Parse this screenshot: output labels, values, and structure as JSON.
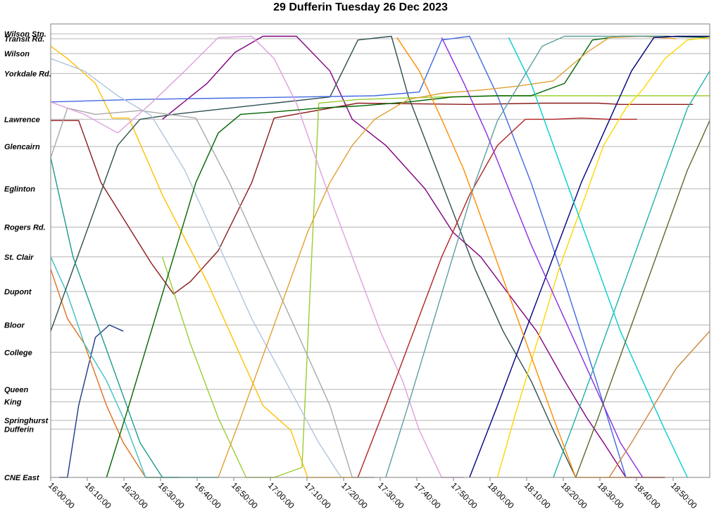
{
  "chart_data": {
    "type": "line",
    "title": "29 Dufferin Tuesday 26 Dec 2023",
    "xlabel": "",
    "ylabel": "",
    "x_ticks": [
      "16:00:00",
      "16:10:00",
      "16:20:00",
      "16:30:00",
      "16:40:00",
      "16:50:00",
      "17:00:00",
      "17:10:00",
      "17:20:00",
      "17:30:00",
      "17:40:00",
      "17:50:00",
      "18:00:00",
      "18:10:00",
      "18:20:00",
      "18:30:00",
      "18:40:00",
      "18:50:00"
    ],
    "x_range_minutes": [
      0,
      118
    ],
    "stops": [
      {
        "name": "Wilson Stn.",
        "pos": 0
      },
      {
        "name": "Transit Rd.",
        "pos": 0.4
      },
      {
        "name": "Wilson",
        "pos": 1.6
      },
      {
        "name": "Yorkdale Rd.",
        "pos": 3.2
      },
      {
        "name": "Lawrence",
        "pos": 6.9
      },
      {
        "name": "Glencairn",
        "pos": 9.1
      },
      {
        "name": "Eglinton",
        "pos": 12.5
      },
      {
        "name": "Rogers Rd.",
        "pos": 15.6
      },
      {
        "name": "St. Clair",
        "pos": 18.0
      },
      {
        "name": "Dupont",
        "pos": 20.8
      },
      {
        "name": "Bloor",
        "pos": 23.5
      },
      {
        "name": "College",
        "pos": 25.7
      },
      {
        "name": "Queen",
        "pos": 28.7
      },
      {
        "name": "King",
        "pos": 29.7
      },
      {
        "name": "Springhurst",
        "pos": 31.2
      },
      {
        "name": "Dufferin",
        "pos": 31.9
      },
      {
        "name": "CNE East",
        "pos": 35.8
      }
    ],
    "grid": true,
    "legend": "none",
    "series": [
      {
        "color": "#1b3a8a",
        "points": [
          [
            1.5,
            35.8
          ],
          [
            3,
            35.8
          ],
          [
            5,
            30
          ],
          [
            8,
            24.5
          ],
          [
            10.5,
            23.5
          ],
          [
            13,
            24
          ]
        ]
      },
      {
        "color": "#8b1a1a",
        "points": [
          [
            0,
            7
          ],
          [
            5,
            7
          ],
          [
            9,
            12
          ],
          [
            18,
            18.5
          ],
          [
            22,
            21
          ],
          [
            25,
            20
          ],
          [
            30,
            17.5
          ],
          [
            36,
            12
          ],
          [
            40,
            6.8
          ],
          [
            55,
            5.6
          ],
          [
            75,
            5.7
          ],
          [
            88,
            5.6
          ],
          [
            98,
            5.6
          ],
          [
            102,
            5.7
          ],
          [
            112,
            5.7
          ],
          [
            115,
            5.7
          ]
        ]
      },
      {
        "color": "#e07020",
        "points": [
          [
            0,
            19
          ],
          [
            3,
            23
          ],
          [
            6,
            25
          ],
          [
            10,
            30
          ],
          [
            13,
            33
          ],
          [
            17,
            35.8
          ],
          [
            20,
            35.8
          ]
        ]
      },
      {
        "color": "#40c0c0",
        "points": [
          [
            0,
            18
          ],
          [
            3,
            21
          ],
          [
            6,
            25
          ],
          [
            10,
            28
          ],
          [
            13,
            31
          ],
          [
            17,
            35.8
          ],
          [
            23,
            35.8
          ]
        ]
      },
      {
        "color": "#ffc000",
        "points": [
          [
            0,
            1
          ],
          [
            3,
            2
          ],
          [
            8,
            4
          ],
          [
            11,
            6.8
          ],
          [
            14,
            6.8
          ],
          [
            20,
            13
          ],
          [
            28,
            20
          ],
          [
            33,
            25
          ],
          [
            38,
            30
          ],
          [
            43,
            32
          ],
          [
            46,
            35.8
          ],
          [
            50,
            35.8
          ],
          [
            55,
            35.8
          ]
        ]
      },
      {
        "color": "#800080",
        "points": [
          [
            20,
            6.9
          ],
          [
            28,
            4
          ],
          [
            33,
            1.5
          ],
          [
            38,
            0.2
          ],
          [
            44,
            0.2
          ],
          [
            50,
            3
          ],
          [
            54,
            6.9
          ],
          [
            60,
            9
          ],
          [
            67,
            12.5
          ],
          [
            72,
            16
          ],
          [
            77,
            18
          ],
          [
            82,
            21
          ],
          [
            87,
            24
          ],
          [
            92,
            28
          ],
          [
            96,
            31
          ],
          [
            99,
            33
          ],
          [
            103,
            35.8
          ],
          [
            110,
            35.8
          ]
        ]
      },
      {
        "color": "#2f4f4f",
        "points": [
          [
            0,
            24
          ],
          [
            4,
            19
          ],
          [
            8,
            14
          ],
          [
            12,
            9
          ],
          [
            16,
            6.9
          ],
          [
            22,
            6.5
          ],
          [
            30,
            6.1
          ],
          [
            40,
            5.6
          ],
          [
            50,
            5.1
          ],
          [
            55,
            0.5
          ],
          [
            61,
            0.2
          ],
          [
            64,
            5
          ],
          [
            70,
            12
          ],
          [
            76,
            19
          ],
          [
            81,
            24
          ],
          [
            86,
            28
          ],
          [
            90,
            32
          ],
          [
            94,
            35.8
          ]
        ]
      },
      {
        "color": "#1c9a8c",
        "points": [
          [
            0,
            10
          ],
          [
            4,
            18
          ],
          [
            8,
            23
          ],
          [
            12,
            28
          ],
          [
            16,
            33
          ],
          [
            20,
            35.8
          ],
          [
            25,
            35.8
          ],
          [
            30,
            35.8
          ]
        ]
      },
      {
        "color": "#4169e1",
        "points": [
          [
            0,
            5.5
          ],
          [
            15,
            5.3
          ],
          [
            30,
            5.2
          ],
          [
            45,
            5.1
          ],
          [
            58,
            5
          ],
          [
            66,
            4.7
          ],
          [
            70,
            0.5
          ],
          [
            75,
            0.2
          ],
          [
            80,
            5
          ],
          [
            86,
            12
          ],
          [
            92,
            20
          ],
          [
            97,
            27
          ],
          [
            103,
            35.8
          ],
          [
            110,
            35.8
          ]
        ]
      },
      {
        "color": "#9acd32",
        "points": [
          [
            20,
            18
          ],
          [
            25,
            25
          ],
          [
            30,
            31
          ],
          [
            35,
            35.8
          ],
          [
            40,
            35.8
          ],
          [
            45,
            35
          ],
          [
            48,
            5.6
          ],
          [
            55,
            5.3
          ],
          [
            62,
            5.2
          ],
          [
            70,
            5.1
          ],
          [
            80,
            5
          ],
          [
            90,
            5
          ],
          [
            100,
            5
          ],
          [
            110,
            5
          ],
          [
            118,
            5
          ]
        ]
      },
      {
        "color": "#a9a9a9",
        "points": [
          [
            0,
            10
          ],
          [
            3,
            6
          ],
          [
            8,
            6.5
          ],
          [
            16,
            6.2
          ],
          [
            26,
            6.8
          ],
          [
            32,
            12
          ],
          [
            38,
            18
          ],
          [
            44,
            24
          ],
          [
            50,
            30
          ],
          [
            54,
            35.8
          ],
          [
            58,
            35.8
          ]
        ]
      },
      {
        "color": "#b0c4de",
        "points": [
          [
            0,
            2
          ],
          [
            6,
            3
          ],
          [
            12,
            5
          ],
          [
            18,
            6.6
          ],
          [
            24,
            11
          ],
          [
            30,
            17
          ],
          [
            36,
            23
          ],
          [
            42,
            28
          ],
          [
            48,
            33
          ],
          [
            52,
            35.8
          ]
        ]
      },
      {
        "color": "#dda0dd",
        "points": [
          [
            0,
            5.5
          ],
          [
            6,
            6.5
          ],
          [
            12,
            8
          ],
          [
            18,
            5.6
          ],
          [
            24,
            3
          ],
          [
            30,
            0.3
          ],
          [
            36,
            0.2
          ],
          [
            40,
            2
          ],
          [
            44,
            5.6
          ],
          [
            49,
            12
          ],
          [
            54,
            18
          ],
          [
            59,
            24
          ],
          [
            63,
            28
          ],
          [
            66,
            32
          ],
          [
            70,
            35.8
          ],
          [
            74,
            35.8
          ]
        ]
      },
      {
        "color": "#006400",
        "points": [
          [
            10,
            35.8
          ],
          [
            14,
            30
          ],
          [
            18,
            24
          ],
          [
            22,
            18
          ],
          [
            26,
            12
          ],
          [
            30,
            8
          ],
          [
            34,
            6.5
          ],
          [
            40,
            6.3
          ],
          [
            48,
            6
          ],
          [
            56,
            5.8
          ],
          [
            64,
            5.5
          ],
          [
            72,
            5.1
          ],
          [
            80,
            5
          ],
          [
            86,
            5
          ],
          [
            92,
            4
          ],
          [
            97,
            0.5
          ],
          [
            102,
            0.2
          ],
          [
            110,
            0.2
          ],
          [
            118,
            0.3
          ]
        ]
      },
      {
        "color": "#e0a030",
        "points": [
          [
            30,
            35.8
          ],
          [
            34,
            31
          ],
          [
            38,
            26
          ],
          [
            42,
            21
          ],
          [
            46,
            16
          ],
          [
            50,
            12
          ],
          [
            54,
            9
          ],
          [
            58,
            6.9
          ],
          [
            64,
            5.3
          ],
          [
            70,
            4.8
          ],
          [
            78,
            4.5
          ],
          [
            84,
            4.2
          ],
          [
            90,
            3.8
          ],
          [
            96,
            1.5
          ],
          [
            100,
            0.3
          ],
          [
            106,
            0.2
          ],
          [
            112,
            0.4
          ]
        ]
      },
      {
        "color": "#b22222",
        "points": [
          [
            55,
            35.8
          ],
          [
            60,
            30
          ],
          [
            65,
            24
          ],
          [
            70,
            18
          ],
          [
            75,
            13
          ],
          [
            80,
            9
          ],
          [
            85,
            6.9
          ],
          [
            90,
            6.9
          ],
          [
            95,
            6.8
          ],
          [
            100,
            6.9
          ],
          [
            105,
            6.9
          ]
        ]
      },
      {
        "color": "#5f9ea0",
        "points": [
          [
            60,
            35.8
          ],
          [
            64,
            30
          ],
          [
            68,
            24
          ],
          [
            72,
            18
          ],
          [
            76,
            12
          ],
          [
            80,
            7
          ],
          [
            84,
            4
          ],
          [
            88,
            1
          ],
          [
            92,
            0.2
          ],
          [
            100,
            0.2
          ],
          [
            110,
            0.2
          ]
        ]
      },
      {
        "color": "#000080",
        "points": [
          [
            75,
            35.8
          ],
          [
            80,
            30
          ],
          [
            85,
            24
          ],
          [
            90,
            18
          ],
          [
            95,
            12
          ],
          [
            100,
            7
          ],
          [
            104,
            3
          ],
          [
            108,
            0.3
          ],
          [
            112,
            0.2
          ],
          [
            118,
            0.2
          ]
        ]
      },
      {
        "color": "#ffd700",
        "points": [
          [
            80,
            35.8
          ],
          [
            83,
            31
          ],
          [
            87,
            25
          ],
          [
            91,
            19
          ],
          [
            95,
            14
          ],
          [
            99,
            9
          ],
          [
            103,
            6
          ],
          [
            106,
            4.5
          ],
          [
            110,
            2
          ],
          [
            114,
            0.5
          ],
          [
            118,
            0.3
          ]
        ]
      },
      {
        "color": "#20b2aa",
        "points": [
          [
            90,
            35.8
          ],
          [
            94,
            31
          ],
          [
            98,
            26
          ],
          [
            102,
            21
          ],
          [
            106,
            16
          ],
          [
            110,
            11
          ],
          [
            114,
            6
          ],
          [
            118,
            3
          ]
        ]
      },
      {
        "color": "#ff8c00",
        "points": [
          [
            62,
            0.3
          ],
          [
            66,
            3
          ],
          [
            70,
            6.9
          ],
          [
            74,
            11
          ],
          [
            78,
            16
          ],
          [
            82,
            21
          ],
          [
            86,
            26
          ],
          [
            90,
            31
          ],
          [
            94,
            35.8
          ],
          [
            98,
            35.8
          ],
          [
            104,
            35.8
          ],
          [
            110,
            35.8
          ]
        ]
      },
      {
        "color": "#8a2be2",
        "points": [
          [
            70,
            0.3
          ],
          [
            74,
            4
          ],
          [
            78,
            8
          ],
          [
            82,
            12.5
          ],
          [
            86,
            17
          ],
          [
            90,
            21
          ],
          [
            94,
            25
          ],
          [
            98,
            29
          ],
          [
            102,
            33
          ],
          [
            106,
            35.8
          ]
        ]
      },
      {
        "color": "#00ced1",
        "points": [
          [
            82,
            0.3
          ],
          [
            86,
            4
          ],
          [
            90,
            9
          ],
          [
            94,
            14
          ],
          [
            98,
            19
          ],
          [
            102,
            24
          ],
          [
            106,
            28
          ],
          [
            110,
            32
          ],
          [
            114,
            35.8
          ]
        ]
      },
      {
        "color": "#556b2f",
        "points": [
          [
            94,
            35.8
          ],
          [
            98,
            31
          ],
          [
            102,
            26
          ],
          [
            106,
            21
          ],
          [
            110,
            16
          ],
          [
            114,
            11
          ],
          [
            118,
            7
          ]
        ]
      },
      {
        "color": "#cd853f",
        "points": [
          [
            100,
            35.8
          ],
          [
            104,
            33
          ],
          [
            108,
            30
          ],
          [
            112,
            27
          ],
          [
            116,
            25
          ],
          [
            118,
            24
          ]
        ]
      }
    ]
  }
}
